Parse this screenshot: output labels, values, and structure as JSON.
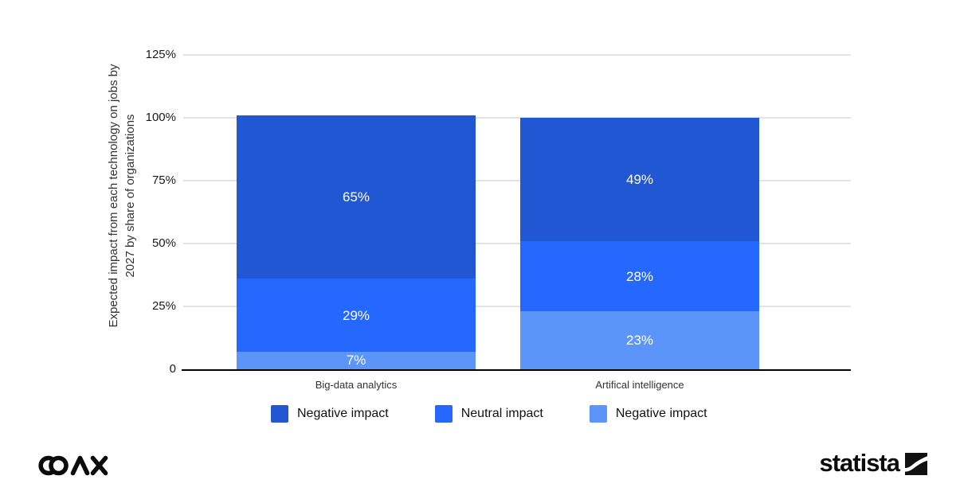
{
  "chart_data": {
    "type": "bar",
    "variant": "stacked",
    "title": "",
    "ylabel": "Expected impact from each technology on jobs by 2027 by share of organizations",
    "ylabel_lines": {
      "line1": "Expected impact from each technology on jobs by",
      "line2": "2027 by share of organizations"
    },
    "xlabel": "",
    "ylim": [
      0,
      125
    ],
    "grid": "horizontal",
    "legend_position": "bottom",
    "y_ticks": [
      {
        "value": 0,
        "label": "0"
      },
      {
        "value": 25,
        "label": "25%"
      },
      {
        "value": 50,
        "label": "50%"
      },
      {
        "value": 75,
        "label": "75%"
      },
      {
        "value": 100,
        "label": "100%"
      },
      {
        "value": 125,
        "label": "125%"
      }
    ],
    "categories": [
      "Big-data analytics",
      "Artifical intelligence"
    ],
    "series": [
      {
        "name": "Negative impact",
        "color": "#2157d2",
        "values": [
          65,
          49
        ],
        "labels": [
          "65%",
          "49%"
        ]
      },
      {
        "name": "Neutral impact",
        "color": "#2468ff",
        "values": [
          29,
          28
        ],
        "labels": [
          "29%",
          "28%"
        ]
      },
      {
        "name": "Negative impact",
        "color": "#5c95fa",
        "values": [
          7,
          23
        ],
        "labels": [
          "7%",
          "23%"
        ]
      }
    ]
  },
  "colors": {
    "dark_blue": "#2157d2",
    "medium_blue": "#2468ff",
    "light_blue": "#5c95fa",
    "gridline": "#e3e3e3",
    "axis_line": "#000000",
    "background": "#ffffff",
    "bar_label_text": "#ffffff"
  },
  "footer": {
    "coax_logo_text": "COAX",
    "statista_logo_text": "statista"
  }
}
